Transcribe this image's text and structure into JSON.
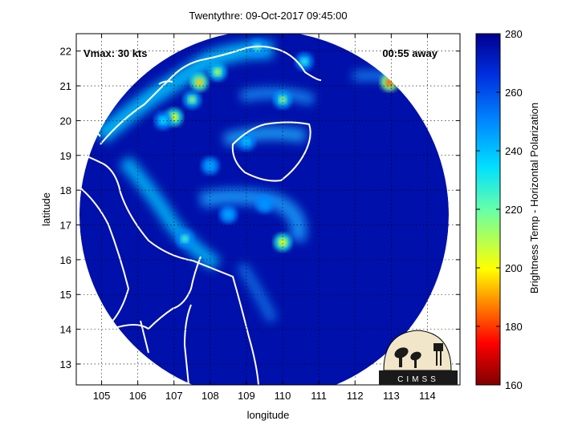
{
  "figure": {
    "title": "Twentythre: 09-Oct-2017 09:45:00",
    "vmax_text": "Vmax: 30 kts",
    "away_text": "00:55 away",
    "logo_text": "CIMSS"
  },
  "axes": {
    "xlabel": "longitude",
    "ylabel": "latitude",
    "xlim": [
      104.3,
      114.9
    ],
    "ylim": [
      12.4,
      22.5
    ],
    "xticks": [
      105,
      106,
      107,
      108,
      109,
      110,
      111,
      112,
      113,
      114
    ],
    "yticks": [
      13,
      14,
      15,
      16,
      17,
      18,
      19,
      20,
      21,
      22
    ],
    "grid": true
  },
  "colorbar": {
    "label": "Brightness Temp - Horizontal Polarization",
    "ticks": [
      160,
      180,
      200,
      220,
      240,
      260,
      280
    ],
    "range": [
      160,
      280
    ]
  },
  "chart_data": {
    "type": "heatmap",
    "title": "Twentythre: 09-Oct-2017 09:45:00",
    "xlabel": "longitude",
    "ylabel": "latitude",
    "xlim": [
      104.3,
      114.9
    ],
    "ylim": [
      12.4,
      22.5
    ],
    "colorbar_label": "Brightness Temp - Horizontal Polarization",
    "colorbar_range": [
      160,
      280
    ],
    "swath_center": [
      110.0,
      17.8
    ],
    "background_value": 275,
    "features": [
      {
        "lon": 107.7,
        "lat": 21.1,
        "value": 195
      },
      {
        "lon": 107.0,
        "lat": 20.1,
        "value": 200
      },
      {
        "lon": 107.5,
        "lat": 20.6,
        "value": 215
      },
      {
        "lon": 108.2,
        "lat": 21.4,
        "value": 210
      },
      {
        "lon": 110.0,
        "lat": 16.5,
        "value": 200
      },
      {
        "lon": 112.95,
        "lat": 21.1,
        "value": 185
      },
      {
        "lon": 110.0,
        "lat": 20.6,
        "value": 215
      },
      {
        "lon": 107.3,
        "lat": 16.6,
        "value": 225
      },
      {
        "lon": 109.3,
        "lat": 22.1,
        "value": 225
      },
      {
        "lon": 110.6,
        "lat": 21.7,
        "value": 230
      },
      {
        "lon": 106.7,
        "lat": 20.0,
        "value": 235
      },
      {
        "lon": 109.0,
        "lat": 19.4,
        "value": 240
      },
      {
        "lon": 108.0,
        "lat": 18.7,
        "value": 245
      },
      {
        "lon": 109.5,
        "lat": 17.6,
        "value": 248
      },
      {
        "lon": 108.5,
        "lat": 17.3,
        "value": 245
      }
    ]
  },
  "colors": {
    "background_field": "#1f3fd0",
    "coast": "#ffffff",
    "frame": "#000000"
  }
}
